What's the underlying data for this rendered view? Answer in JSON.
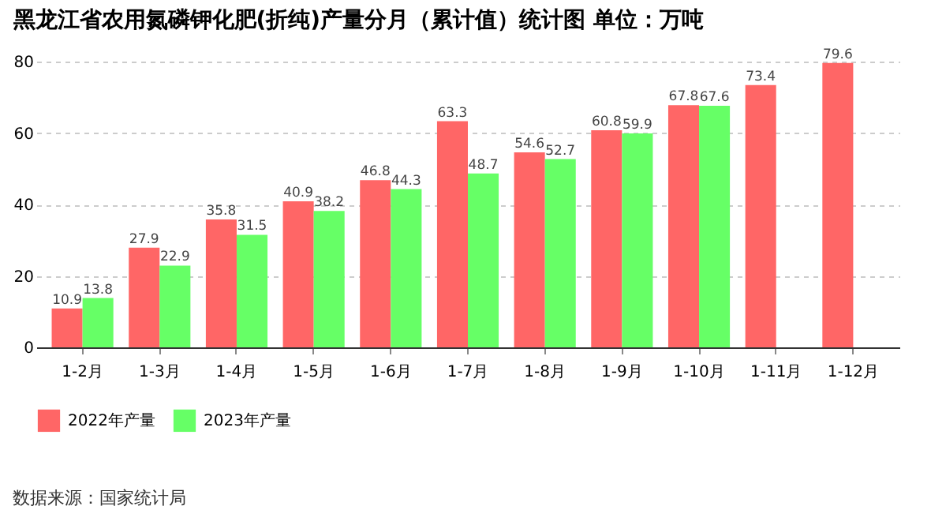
{
  "chart_data": {
    "type": "bar",
    "title": "黑龙江省农用氮磷钾化肥(折纯)产量分月（累计值）统计图 单位：万吨",
    "categories": [
      "1-2月",
      "1-3月",
      "1-4月",
      "1-5月",
      "1-6月",
      "1-7月",
      "1-8月",
      "1-9月",
      "1-10月",
      "1-11月",
      "1-12月"
    ],
    "series": [
      {
        "name": "2022年产量",
        "color": "#ff6666",
        "values": [
          10.9,
          27.9,
          35.8,
          40.9,
          46.8,
          63.3,
          54.6,
          60.8,
          67.8,
          73.4,
          79.6
        ]
      },
      {
        "name": "2023年产量",
        "color": "#66ff66",
        "values": [
          13.8,
          22.9,
          31.5,
          38.2,
          44.3,
          48.7,
          52.7,
          59.9,
          67.6,
          null,
          null
        ]
      }
    ],
    "ylim": [
      0,
      80
    ],
    "yticks": [
      0,
      20,
      40,
      60,
      80
    ],
    "grid": "y",
    "legend": "bottom",
    "data_labels": true,
    "annotations": [
      "数据来源：国家统计局"
    ]
  }
}
